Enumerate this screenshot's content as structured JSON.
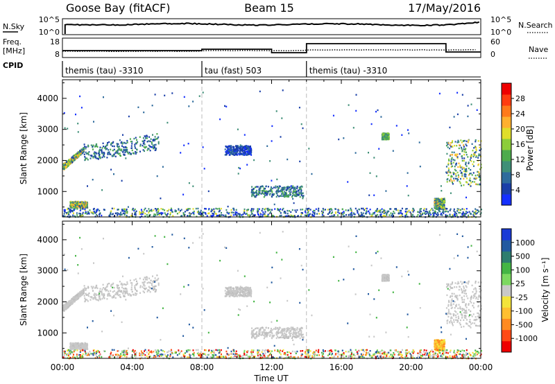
{
  "header": {
    "station": "Goose Bay (fitACF)",
    "beam": "Beam 15",
    "date": "17/May/2016"
  },
  "nsky_panel": {
    "left_label": "N.Sky",
    "right_label": "N.Search",
    "left_ticks": [
      "10^5",
      "10^0"
    ],
    "right_ticks": [
      "10^5",
      "10^0"
    ]
  },
  "freq_panel": {
    "left_label_line1": "Freq.",
    "left_label_line2": "[MHz]",
    "right_label": "Nave",
    "left_ticks": [
      "18",
      "8"
    ],
    "right_ticks": [
      "60",
      "0"
    ]
  },
  "cpid": {
    "label": "CPID",
    "segments": [
      {
        "start_hour": 0,
        "end_hour": 8,
        "text": "themis (tau) -3310"
      },
      {
        "start_hour": 8,
        "end_hour": 14,
        "text": "tau (fast) 503"
      },
      {
        "start_hour": 14,
        "end_hour": 24,
        "text": "themis (tau) -3310"
      }
    ]
  },
  "axes": {
    "ylabel": "Slant Range [km]",
    "xlabel": "Time UT",
    "x_ticks": [
      "00:00",
      "04:00",
      "08:00",
      "12:00",
      "16:00",
      "20:00",
      "00:00"
    ],
    "x_tick_hours": [
      0,
      4,
      8,
      12,
      16,
      20,
      24
    ],
    "y_ticks": [
      "1000",
      "2000",
      "3000",
      "4000"
    ],
    "y_tick_km": [
      1000,
      2000,
      3000,
      4000
    ],
    "ylim_km": [
      180,
      4600
    ],
    "xlim_hours": [
      0,
      24
    ]
  },
  "power_colorbar": {
    "label": "Power [dB]",
    "ticks": [
      "4",
      "8",
      "12",
      "16",
      "20",
      "24",
      "28"
    ],
    "colors": [
      "#1530ff",
      "#1a3fa8",
      "#2e6b9c",
      "#3f8f77",
      "#4dab4d",
      "#8ccd3a",
      "#e0dd2a",
      "#ffb02e",
      "#ff7a1a",
      "#ff3c10",
      "#ee0000"
    ]
  },
  "velocity_colorbar": {
    "label": "Velocity [m s⁻¹]",
    "ticks": [
      "1000",
      "500",
      "100",
      "25",
      "-25",
      "-100",
      "-500",
      "-1000"
    ],
    "colors": [
      "#1a3ad6",
      "#225aa0",
      "#2e7d6e",
      "#44b544",
      "#7cd860",
      "#c8c8c8",
      "#f3e43b",
      "#ffbf30",
      "#ff8a20",
      "#ff4a15",
      "#ee0000"
    ]
  },
  "chart_data": {
    "type": "heatmap",
    "x_unit": "hours UT",
    "y_unit": "km",
    "scatter_regions": [
      {
        "t": [
          0.0,
          1.2
        ],
        "r0": [
          1700,
          1900
        ],
        "r1": [
          2300,
          2450
        ],
        "power": "mixed-green-yellow",
        "velocity": "gray"
      },
      {
        "t": [
          1.2,
          5.5
        ],
        "r0": [
          2000,
          2500
        ],
        "r1": [
          2350,
          2900
        ],
        "power": "mixed-blue-green",
        "velocity": "gray"
      },
      {
        "t": [
          0.4,
          1.4
        ],
        "r": [
          500,
          700
        ],
        "power": "mixed",
        "velocity": "gray"
      },
      {
        "t": [
          9.3,
          10.8
        ],
        "r": [
          2200,
          2500
        ],
        "power": "blue",
        "velocity": "gray"
      },
      {
        "t": [
          10.8,
          13.8
        ],
        "r": [
          850,
          1200
        ],
        "power": "blue-green",
        "velocity": "gray"
      },
      {
        "t": [
          18.3,
          18.7
        ],
        "r": [
          2700,
          2900
        ],
        "power": "green",
        "velocity": "gray"
      },
      {
        "t": [
          21.3,
          21.9
        ],
        "r": [
          450,
          800
        ],
        "power": "mixed",
        "velocity": "yellow-orange"
      },
      {
        "t": [
          22.0,
          24.0
        ],
        "r": [
          1200,
          2700
        ],
        "power": "mixed-green-yellow",
        "velocity": "gray"
      }
    ],
    "cpid_change_hours": [
      8,
      14
    ]
  }
}
